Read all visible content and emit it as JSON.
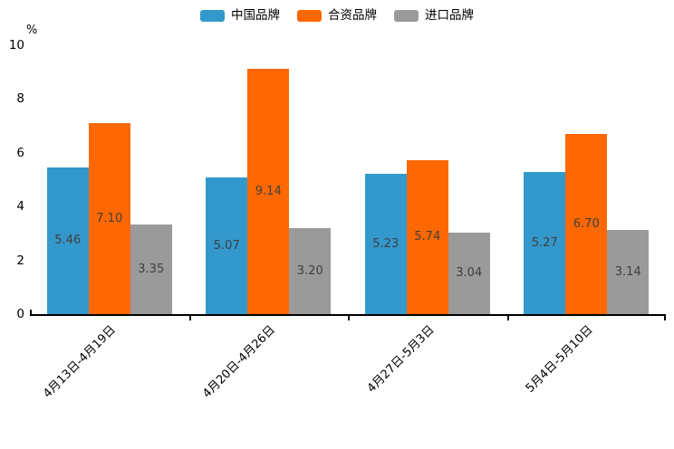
{
  "chart_data": {
    "type": "bar",
    "title": "",
    "ylabel": "%",
    "xlabel": "",
    "ylim": [
      0,
      10
    ],
    "yticks": [
      0,
      2,
      4,
      6,
      8,
      10
    ],
    "grid": false,
    "legend_position": "top",
    "categories": [
      "4月13日-4月19日",
      "4月20日-4月26日",
      "4月27日-5月3日",
      "5月4日-5月10日"
    ],
    "series": [
      {
        "name": "中国品牌",
        "color": "#3398cc",
        "values": [
          5.46,
          5.07,
          5.23,
          5.27
        ],
        "labels": [
          "5.46",
          "5.07",
          "5.23",
          "5.27"
        ]
      },
      {
        "name": "合资品牌",
        "color": "#fd6802",
        "values": [
          7.1,
          9.14,
          5.74,
          6.7
        ],
        "labels": [
          "7.10",
          "9.14",
          "5.74",
          "6.70"
        ]
      },
      {
        "name": "进口品牌",
        "color": "#9a9a9a",
        "values": [
          3.35,
          3.2,
          3.04,
          3.14
        ],
        "labels": [
          "3.35",
          "3.20",
          "3.04",
          "3.14"
        ]
      }
    ],
    "bar_label_color": "#3f3f3f",
    "axis_color": "#000000",
    "background_color": "#ffffff"
  }
}
